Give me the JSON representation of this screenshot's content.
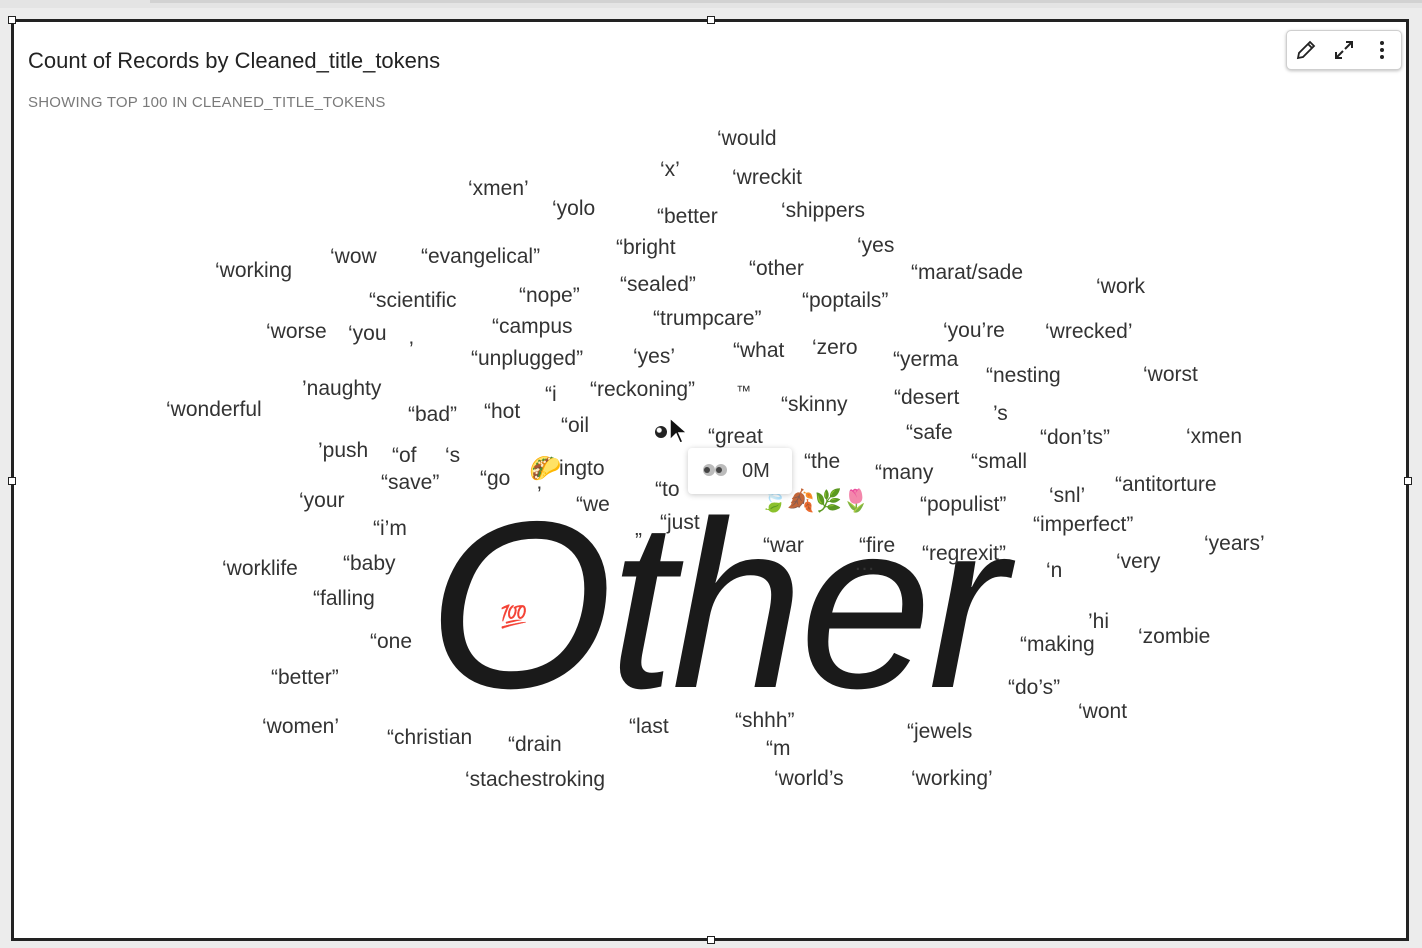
{
  "visual": {
    "title": "Count of Records by Cleaned_title_tokens",
    "subtitle": "SHOWING TOP 100 IN CLEANED_TITLE_TOKENS",
    "toolbar": {
      "edit_icon": "pencil-icon",
      "expand_icon": "expand-icon",
      "menu_icon": "more-vertical-icon"
    },
    "tooltip": {
      "icon": "eyes-icon",
      "value": "0M"
    },
    "dominant_word": "Other"
  },
  "chart_data": {
    "type": "word-cloud",
    "title": "Count of Records by Cleaned_title_tokens",
    "subtitle": "SHOWING TOP 100 IN CLEANED_TITLE_TOKENS",
    "largest_term": "Other",
    "terms": [
      "‘would",
      "‘x’",
      "‘wreckit",
      "‘xmen’",
      "‘yolo",
      "“better",
      "‘shippers",
      "“bright",
      "‘yes",
      "‘working",
      "‘wow",
      "“evangelical”",
      "“other",
      "“marat/sade",
      "“sealed”",
      "‘work",
      "“scientific",
      "“nope”",
      "“poptails”",
      "“trumpcare”",
      "‘worse",
      "‘you",
      "“campus",
      "‘you’re",
      "‘wrecked’",
      "’",
      "“unplugged”",
      "‘yes’",
      "“what",
      "‘zero",
      "“yerma",
      "“nesting",
      "‘worst",
      "’naughty",
      "“i",
      "“reckoning”",
      "™",
      "“skinny",
      "“desert",
      "‘wonderful",
      "“bad”",
      "“hot",
      "’s",
      "“oil",
      "“great",
      "“safe",
      "“don’ts”",
      "‘xmen",
      "’push",
      "“of",
      "‘s",
      "“the",
      "“small",
      "“save”",
      "“go",
      "ingto",
      "“many",
      "“antitorture",
      "‘your",
      "’",
      "“we",
      "“to",
      "“populist”",
      "‘snl’",
      "“i’m",
      "„",
      "“just",
      "“imperfect”",
      "‘years’",
      "“war",
      "“fire",
      "“regrexit”",
      "‘worklife",
      "“baby",
      "…",
      "‘n",
      "‘very",
      "“falling",
      "’hi",
      "“one",
      "“making",
      "‘zombie",
      "“better”",
      "“do’s”",
      "‘wont",
      "‘women’",
      "“christian",
      "“drain",
      "“last",
      "“shhh”",
      "“jewels",
      "“m",
      "‘stachestroking",
      "‘world’s",
      "‘working’"
    ],
    "emoji_terms": [
      "🌮",
      "💯",
      "🍃🍂🌿🌷"
    ]
  }
}
